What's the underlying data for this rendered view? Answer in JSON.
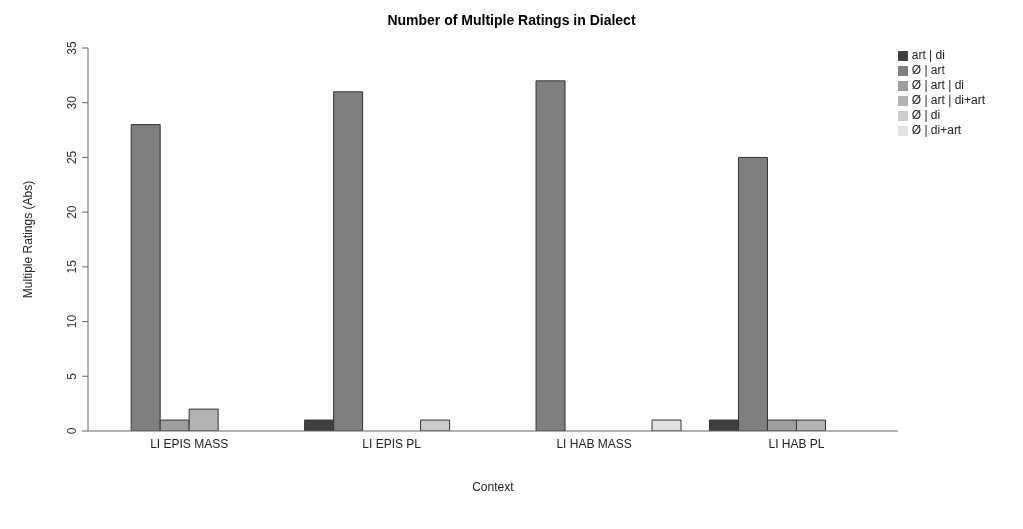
{
  "chart_data": {
    "type": "bar",
    "title": "Number of Multiple Ratings in Dialect",
    "xlabel": "Context",
    "ylabel": "Multiple Ratings (Abs)",
    "categories": [
      "LI EPIS MASS",
      "LI EPIS PL",
      "LI HAB MASS",
      "LI HAB PL"
    ],
    "series": [
      {
        "name": "art | di",
        "color": "#404040",
        "values": [
          0,
          1,
          0,
          1
        ]
      },
      {
        "name": "Ø | art",
        "color": "#7f7f7f",
        "values": [
          28,
          31,
          32,
          25
        ]
      },
      {
        "name": "Ø | art | di",
        "color": "#9e9e9e",
        "values": [
          1,
          0,
          0,
          1
        ]
      },
      {
        "name": "Ø | art | di+art",
        "color": "#b3b3b3",
        "values": [
          2,
          0,
          0,
          1
        ]
      },
      {
        "name": "Ø | di",
        "color": "#cccccc",
        "values": [
          0,
          1,
          0,
          0
        ]
      },
      {
        "name": "Ø | di+art",
        "color": "#e3e3e3",
        "values": [
          0,
          0,
          1,
          0
        ]
      }
    ],
    "ylim": [
      0,
      35
    ],
    "yticks": [
      0,
      5,
      10,
      15,
      20,
      25,
      30,
      35
    ],
    "grid": false,
    "legend": "top right"
  }
}
